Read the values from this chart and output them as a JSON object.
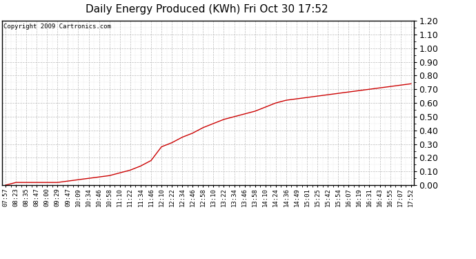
{
  "title": "Daily Energy Produced (KWh) Fri Oct 30 17:52",
  "copyright_text": "Copyright 2009 Cartronics.com",
  "line_color": "#cc0000",
  "background_color": "#ffffff",
  "plot_background": "#ffffff",
  "grid_color": "#bbbbbb",
  "ylim": [
    0.0,
    1.2
  ],
  "yticks": [
    0.0,
    0.1,
    0.2,
    0.3,
    0.4,
    0.5,
    0.6,
    0.7,
    0.8,
    0.9,
    1.0,
    1.1,
    1.2
  ],
  "x_labels": [
    "07:57",
    "08:23",
    "08:35",
    "08:47",
    "09:00",
    "09:29",
    "09:47",
    "10:09",
    "10:34",
    "10:46",
    "10:58",
    "11:10",
    "11:22",
    "11:34",
    "11:46",
    "12:10",
    "12:22",
    "12:34",
    "12:46",
    "12:58",
    "13:10",
    "13:22",
    "13:34",
    "13:46",
    "13:58",
    "14:10",
    "14:24",
    "14:36",
    "14:49",
    "15:01",
    "15:25",
    "15:42",
    "15:54",
    "16:07",
    "16:19",
    "16:31",
    "16:43",
    "16:55",
    "17:07",
    "17:52"
  ],
  "y_values": [
    0.0,
    0.02,
    0.02,
    0.02,
    0.02,
    0.02,
    0.03,
    0.04,
    0.05,
    0.06,
    0.07,
    0.09,
    0.11,
    0.14,
    0.18,
    0.28,
    0.31,
    0.35,
    0.38,
    0.42,
    0.45,
    0.48,
    0.5,
    0.52,
    0.54,
    0.57,
    0.6,
    0.62,
    0.63,
    0.64,
    0.65,
    0.66,
    0.67,
    0.68,
    0.69,
    0.7,
    0.71,
    0.72,
    0.73,
    0.74
  ],
  "title_fontsize": 11,
  "tick_fontsize": 6.5,
  "ytick_fontsize": 9,
  "copyright_fontsize": 6.5
}
